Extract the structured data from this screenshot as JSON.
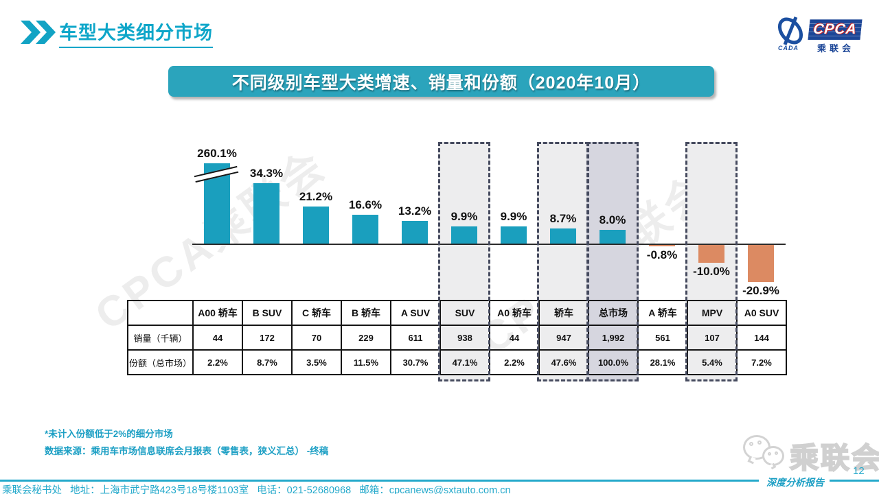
{
  "header": {
    "title": "车型大类细分市场"
  },
  "logo": {
    "cpca": "CPCA",
    "cada": "CADA",
    "name_cn": "乘联会"
  },
  "banner": {
    "title": "不同级别车型大类增速、销量和份额（2020年10月）"
  },
  "watermark": {
    "text": "CPCA乘联会"
  },
  "chart_data": {
    "type": "bar",
    "title": "不同级别车型大类增速、销量和份额（2020年10月）",
    "categories": [
      "A00 轿车",
      "B SUV",
      "C 轿车",
      "B 轿车",
      "A SUV",
      "SUV",
      "A0 轿车",
      "轿车",
      "总市场",
      "A 轿车",
      "MPV",
      "A0 SUV"
    ],
    "series": [
      {
        "name": "同比增速",
        "unit": "%",
        "values": [
          260.1,
          34.3,
          21.2,
          16.6,
          13.2,
          9.9,
          9.9,
          8.7,
          8.0,
          -0.8,
          -10.0,
          -20.9
        ]
      }
    ],
    "value_labels": [
      "260.1%",
      "34.3%",
      "21.2%",
      "16.6%",
      "13.2%",
      "9.9%",
      "9.9%",
      "8.7%",
      "8.0%",
      "-0.8%",
      "-10.0%",
      "-20.9%"
    ],
    "axis_break": {
      "category": "A00 轿车"
    },
    "highlighted_categories": [
      "SUV",
      "轿车",
      "总市场",
      "MPV"
    ],
    "emphasis_category": "总市场",
    "legend_position": "none",
    "grid": false,
    "colors": {
      "positive_bar": "#1A9FBE",
      "negative_bar": "#DC8A62",
      "highlight_fill": "#EDEDEE",
      "emphasis_fill": "#D6D6DF",
      "dashed_border": "#454A5E"
    },
    "table": {
      "row_headers": [
        "销量（千辆）",
        "份额（总市场）"
      ],
      "rows": [
        [
          "44",
          "172",
          "70",
          "229",
          "611",
          "938",
          "44",
          "947",
          "1,992",
          "561",
          "107",
          "144"
        ],
        [
          "2.2%",
          "8.7%",
          "3.5%",
          "11.5%",
          "30.7%",
          "47.1%",
          "2.2%",
          "47.6%",
          "100.0%",
          "28.1%",
          "5.4%",
          "7.2%"
        ]
      ]
    }
  },
  "notes": {
    "footnote": "*未计入份额低于2%的细分市场",
    "source": "数据来源：乘用车市场信息联席会月报表（零售表，狭义汇总）  -终稿"
  },
  "footer": {
    "contact": "乘联会秘书处   地址：上海市武宁路423号18号楼1103室   电话：021-52680968   邮箱：cpcanews@sxtauto.com.cn",
    "page_number": "12",
    "report_tag": "深度分析报告",
    "wechat_label": "乘联会"
  }
}
